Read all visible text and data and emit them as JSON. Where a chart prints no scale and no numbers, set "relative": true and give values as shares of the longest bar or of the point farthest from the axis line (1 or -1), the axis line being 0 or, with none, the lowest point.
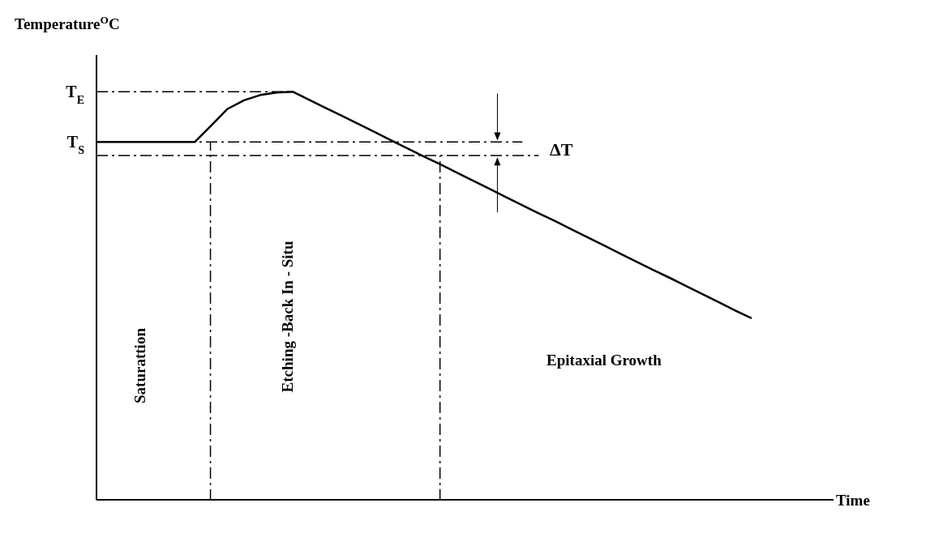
{
  "chart_data": {
    "type": "line",
    "relative": true,
    "xlabel": "Time",
    "ylabel": "Temperature$^{O}$C",
    "categories": [
      null,
      null,
      null,
      null,
      null,
      null,
      null,
      null,
      null,
      null,
      null,
      null,
      null,
      null,
      null,
      null,
      null,
      null,
      null,
      null,
      null,
      null,
      null,
      null,
      null,
      null,
      null,
      null,
      null,
      null,
      null,
      null,
      null,
      null,
      null,
      null,
      null,
      null,
      null,
      null,
      null
    ],
    "series": [
      {
        "color": "#000000",
        "values": [
          0.877,
          0.877,
          0.877,
          0.877,
          0.877,
          0.877,
          0.877,
          0.917,
          0.958,
          0.979,
          0.992,
          0.998,
          1,
          0.98,
          0.96,
          0.941,
          0.921,
          0.901,
          0.881,
          0.861,
          0.841,
          0.822,
          0.802,
          0.782,
          0.762,
          0.742,
          0.722,
          0.702,
          0.683,
          0.663,
          0.643,
          0.623,
          0.603,
          0.583,
          0.563,
          0.544,
          0.524,
          0.504,
          0.484,
          0.464,
          0.445
        ]
      }
    ],
    "marker": "none",
    "line_style": "solid",
    "ref_lines": [
      {
        "axis": "y",
        "value": 1,
        "label": "T$_{E}$",
        "line_style": "dashed"
      },
      {
        "axis": "y",
        "value": 0.877,
        "label": "T$_{S}$",
        "line_style": "dashed"
      },
      {
        "axis": "y",
        "value": 0.844,
        "line_style": "dashed"
      }
    ],
    "annotations": [
      "ΔT",
      "Saturattion",
      "Etching -Back In - Situ",
      "Epitaxial Growth"
    ]
  }
}
